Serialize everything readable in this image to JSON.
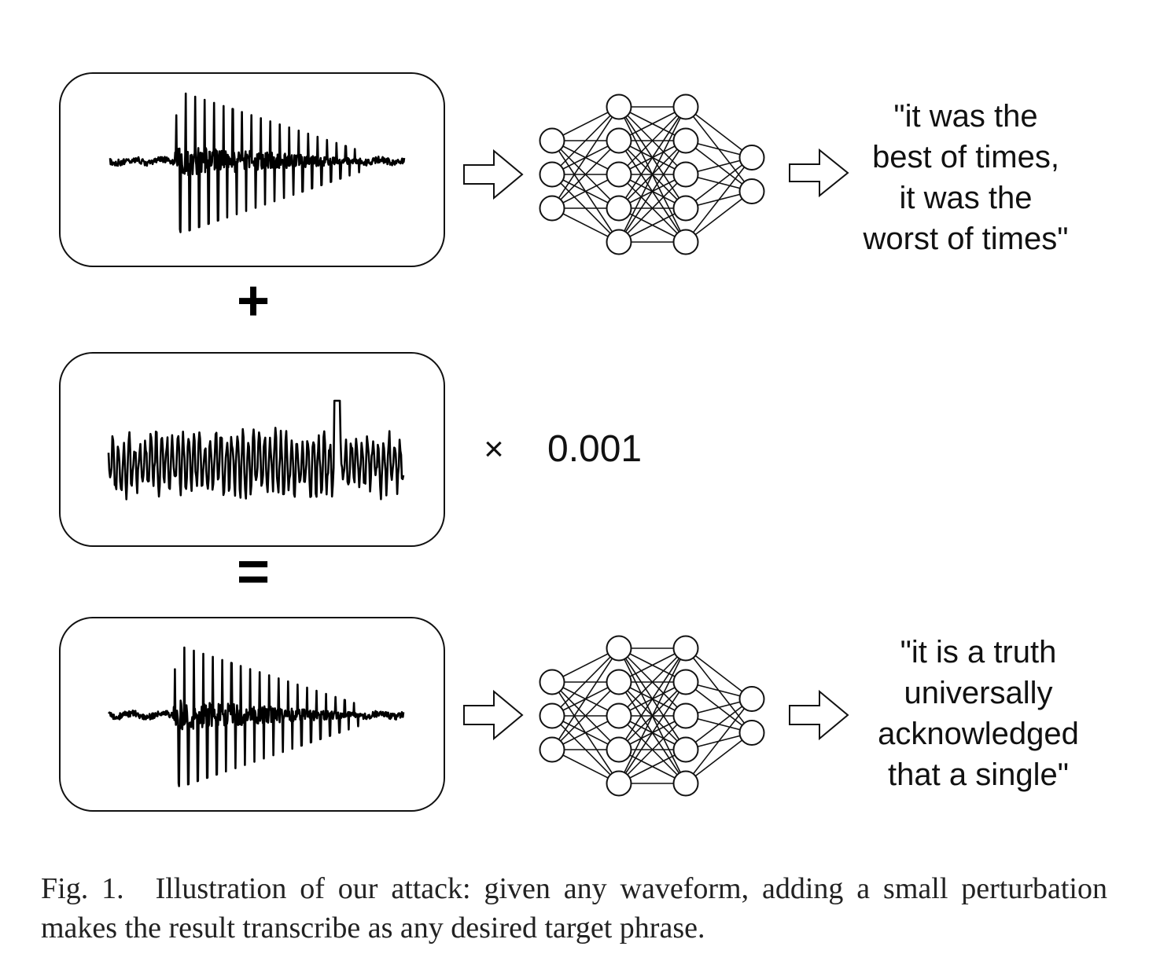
{
  "operators": {
    "plus": "+",
    "times": "×",
    "equals": "=",
    "scale": "0.001"
  },
  "top_output": {
    "lines": [
      "\"it was the",
      "best of times,",
      "it was the",
      "worst of times\""
    ]
  },
  "bottom_output": {
    "lines": [
      "\"it is a truth",
      "universally",
      "acknowledged",
      "that a single\""
    ]
  },
  "caption": {
    "label": "Fig. 1.",
    "text": "Illustration of our attack: given any waveform, adding a small perturbation makes the result transcribe as any desired target phrase."
  },
  "network": {
    "layers": [
      3,
      5,
      5,
      2
    ]
  }
}
